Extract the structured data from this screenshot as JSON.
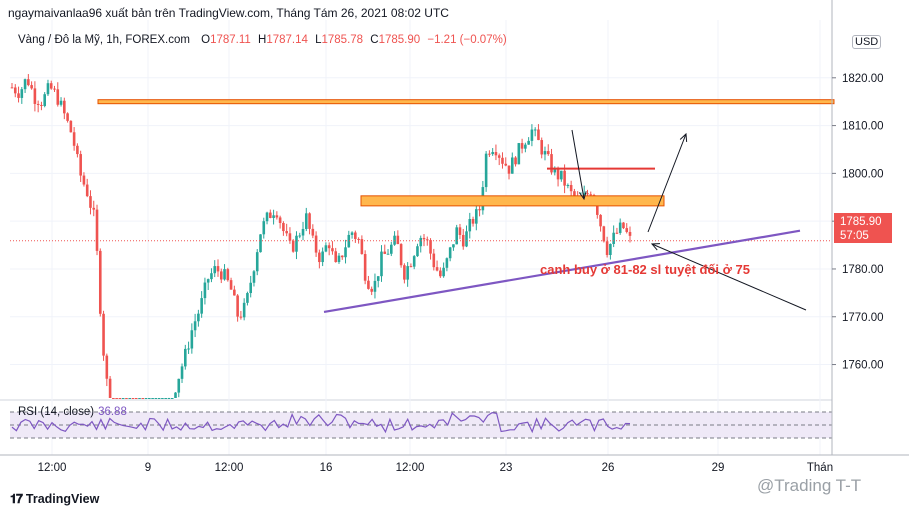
{
  "header": {
    "published": "ngaymaivanlaa96 xuất bản trên TradingView.com, Tháng Tám 26, 2021 08:02 UTC",
    "symbol": "Vàng / Đô la Mỹ, 1h, FOREX.com",
    "ohlc": {
      "o": "1787.11",
      "h": "1787.14",
      "l": "1785.78",
      "c": "1785.90",
      "change": "−1.21 (−0.07%)"
    }
  },
  "currency_badge": "USD",
  "price_tag": {
    "price": "1785.90",
    "countdown": "57:05"
  },
  "rsi": {
    "label": "RSI (14, close)",
    "value": "36.88"
  },
  "annotation": "canh buy ở 81-82  sl tuyệt đối ở 75",
  "footer": {
    "logo_text": "TradingView",
    "watermark": "@Trading T-T"
  },
  "colors": {
    "up": "#26a69a",
    "down": "#ef5350",
    "trendline": "#7e57c2",
    "zone": "#ffb74d",
    "zone_border": "#e65100",
    "rsi": "#7e57c2"
  },
  "chart_data": {
    "type": "candlestick",
    "y_axis": {
      "range": [
        1753,
        1830
      ],
      "ticks": [
        1760,
        1770,
        1780,
        1790,
        1800,
        1810,
        1820
      ],
      "tick_labels": [
        "1760.00",
        "1770.00",
        "1780.00",
        "1790.00",
        "1800.00",
        "1810.00",
        "1820.00"
      ]
    },
    "x_axis": {
      "tick_labels": [
        "12:00",
        "9",
        "12:00",
        "16",
        "12:00",
        "23",
        "26",
        "29",
        "Thán"
      ]
    },
    "close_path": [
      1818,
      1817,
      1820,
      1816,
      1815,
      1818,
      1816,
      1812,
      1808,
      1800,
      1796,
      1790,
      1765,
      1750,
      1742,
      1740,
      1738,
      1737,
      1740,
      1742,
      1748,
      1752,
      1757,
      1762,
      1768,
      1772,
      1778,
      1780,
      1779,
      1776,
      1770,
      1772,
      1780,
      1788,
      1791,
      1793,
      1788,
      1784,
      1787,
      1791,
      1785,
      1782,
      1786,
      1780,
      1784,
      1788,
      1786,
      1778,
      1776,
      1782,
      1784,
      1786,
      1779,
      1782,
      1787,
      1786,
      1781,
      1778,
      1783,
      1788,
      1786,
      1790,
      1792,
      1805,
      1806,
      1803,
      1801,
      1804,
      1807,
      1809,
      1806,
      1803,
      1800,
      1799,
      1796,
      1794,
      1795,
      1797,
      1790,
      1784,
      1787,
      1789,
      1786
    ],
    "levels": [
      {
        "name": "resistance-zone-top",
        "value": 1815
      },
      {
        "name": "supply-zone",
        "from": 1793.2,
        "to": 1795.3
      },
      {
        "name": "resistance-short",
        "value": 1801
      }
    ],
    "trendline": {
      "from": 1771,
      "to": 1788
    },
    "last_price": 1785.9,
    "rsi_value": 36.88
  }
}
